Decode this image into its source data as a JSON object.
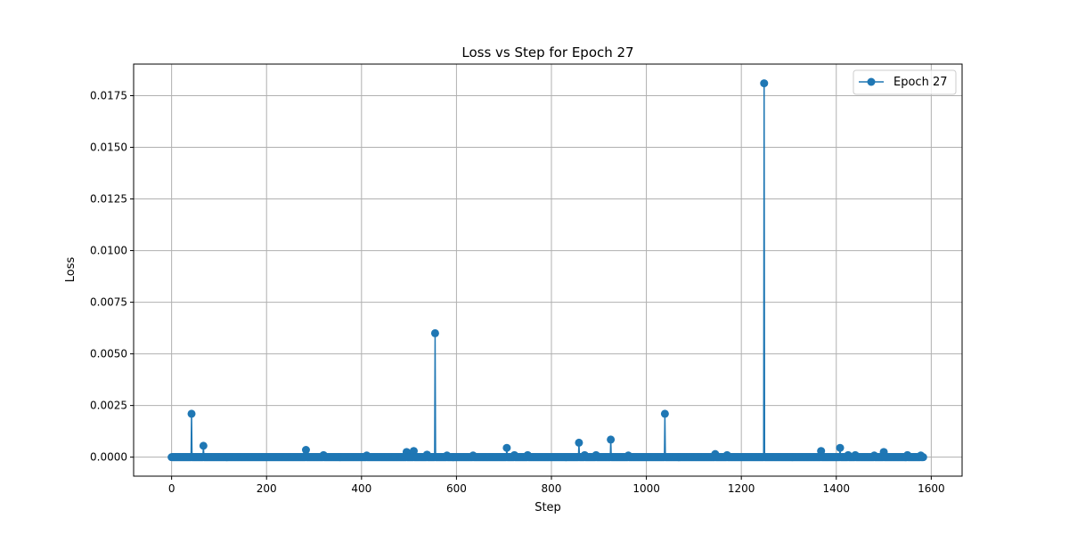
{
  "chart_data": {
    "type": "line",
    "title": "Loss vs Step for Epoch 27",
    "xlabel": "Step",
    "ylabel": "Loss",
    "xlim": [
      -80,
      1665
    ],
    "ylim": [
      -0.00092,
      0.01903
    ],
    "xticks": [
      0,
      200,
      400,
      600,
      800,
      1000,
      1200,
      1400,
      1600
    ],
    "yticks": [
      0.0,
      0.0025,
      0.005,
      0.0075,
      0.01,
      0.0125,
      0.015,
      0.0175
    ],
    "ytick_labels": [
      "0.0000",
      "0.0025",
      "0.0050",
      "0.0075",
      "0.0100",
      "0.0125",
      "0.0150",
      "0.0175"
    ],
    "grid": true,
    "legend_position": "top-right",
    "series": [
      {
        "name": "Epoch 27",
        "color": "#1f77b4",
        "x_range": [
          0,
          1583
        ],
        "baseline": 0.0,
        "peaks": [
          [
            42,
            0.0021
          ],
          [
            67,
            0.00055
          ],
          [
            283,
            0.00035
          ],
          [
            320,
            0.0001
          ],
          [
            411,
            8e-05
          ],
          [
            495,
            0.00025
          ],
          [
            510,
            0.0003
          ],
          [
            538,
            0.00012
          ],
          [
            555,
            0.006
          ],
          [
            580,
            8e-05
          ],
          [
            635,
            8e-05
          ],
          [
            706,
            0.00045
          ],
          [
            722,
            0.0001
          ],
          [
            750,
            0.0001
          ],
          [
            858,
            0.0007
          ],
          [
            870,
            0.0001
          ],
          [
            894,
            0.0001
          ],
          [
            925,
            0.00085
          ],
          [
            962,
            8e-05
          ],
          [
            1039,
            0.0021
          ],
          [
            1145,
            0.00015
          ],
          [
            1170,
            0.0001
          ],
          [
            1248,
            0.0181
          ],
          [
            1368,
            0.0003
          ],
          [
            1408,
            0.00045
          ],
          [
            1425,
            0.0001
          ],
          [
            1440,
            0.0001
          ],
          [
            1480,
            8e-05
          ],
          [
            1500,
            0.00025
          ],
          [
            1550,
            0.0001
          ],
          [
            1578,
            8e-05
          ]
        ]
      }
    ]
  }
}
